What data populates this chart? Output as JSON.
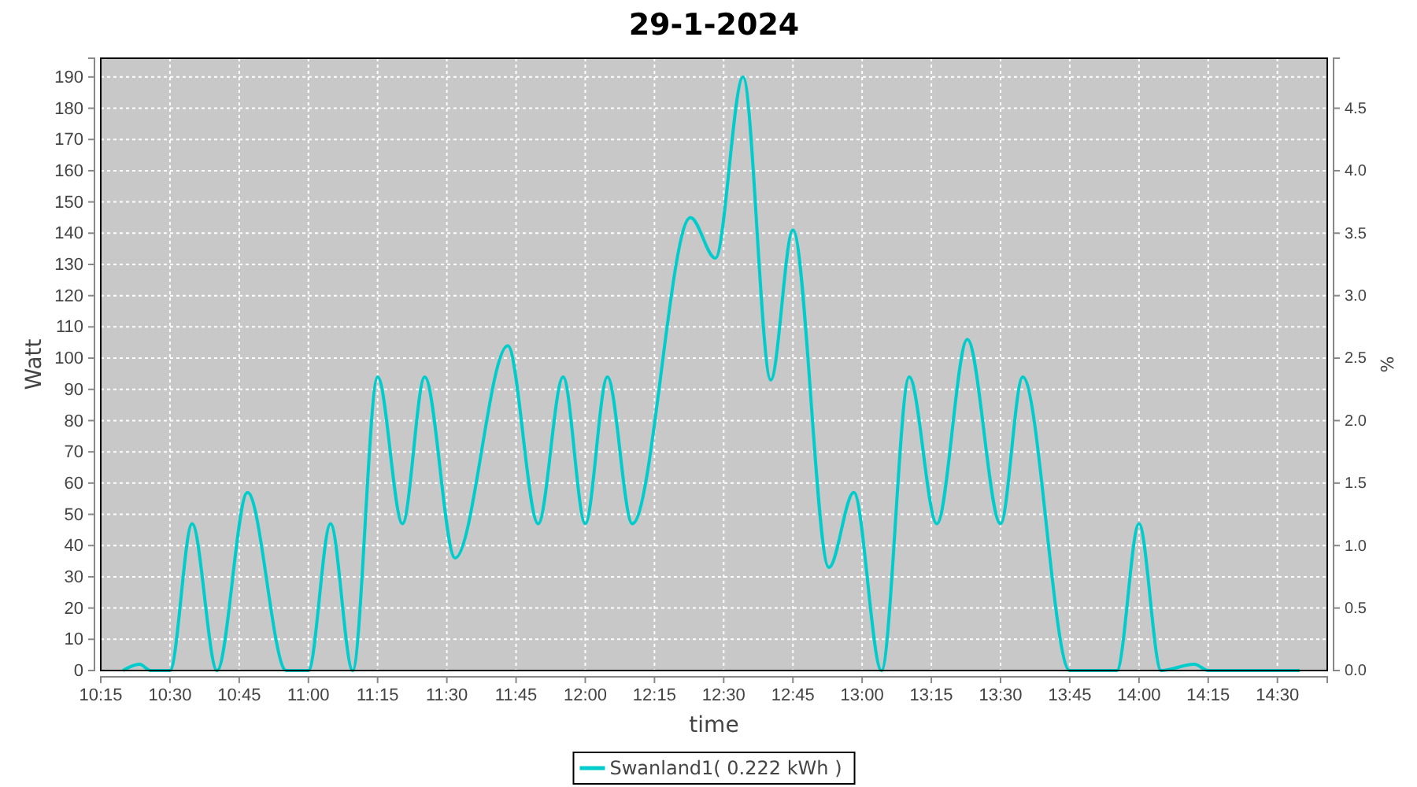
{
  "chart_data": {
    "type": "line",
    "title": "29-1-2024",
    "xlabel": "time",
    "ylabel": "Watt",
    "y2label": "%",
    "xlim": [
      10.25,
      14.68
    ],
    "xticks": [
      {
        "value": 10.25,
        "label": "10:15"
      },
      {
        "value": 10.5,
        "label": "10:30"
      },
      {
        "value": 10.75,
        "label": "10:45"
      },
      {
        "value": 11,
        "label": "11:00"
      },
      {
        "value": 11.25,
        "label": "11:15"
      },
      {
        "value": 11.5,
        "label": "11:30"
      },
      {
        "value": 11.75,
        "label": "11:45"
      },
      {
        "value": 12,
        "label": "12:00"
      },
      {
        "value": 12.25,
        "label": "12:15"
      },
      {
        "value": 12.5,
        "label": "12:30"
      },
      {
        "value": 12.75,
        "label": "12:45"
      },
      {
        "value": 13,
        "label": "13:00"
      },
      {
        "value": 13.25,
        "label": "13:15"
      },
      {
        "value": 13.5,
        "label": "13:30"
      },
      {
        "value": 13.75,
        "label": "13:45"
      },
      {
        "value": 14,
        "label": "14:00"
      },
      {
        "value": 14.25,
        "label": "14:15"
      },
      {
        "value": 14.5,
        "label": "14:30"
      }
    ],
    "ylim": [
      0,
      196
    ],
    "yticks": [
      0,
      10,
      20,
      30,
      40,
      50,
      60,
      70,
      80,
      90,
      100,
      110,
      120,
      130,
      140,
      150,
      160,
      170,
      180,
      190
    ],
    "y2lim": [
      0,
      4.9
    ],
    "y2ticks": [
      {
        "value": 0,
        "label": "0.0"
      },
      {
        "value": 0.5,
        "label": "0.5"
      },
      {
        "value": 1,
        "label": "1.0"
      },
      {
        "value": 1.5,
        "label": "1.5"
      },
      {
        "value": 2,
        "label": "2.0"
      },
      {
        "value": 2.5,
        "label": "2.5"
      },
      {
        "value": 3,
        "label": "3.0"
      },
      {
        "value": 3.5,
        "label": "3.5"
      },
      {
        "value": 4,
        "label": "4.0"
      },
      {
        "value": 4.5,
        "label": "4.5"
      }
    ],
    "grid": true,
    "legend": "bottom",
    "marker": "none",
    "line_style": "solid",
    "series": [
      {
        "name": "Swanland1( 0.222 kWh )",
        "color": "#00cccc",
        "x": [
          10.33,
          10.39,
          10.43,
          10.5,
          10.58,
          10.67,
          10.78,
          10.92,
          11,
          11.08,
          11.16,
          11.25,
          11.34,
          11.42,
          11.53,
          11.72,
          11.83,
          11.92,
          12,
          12.08,
          12.17,
          12.38,
          12.47,
          12.57,
          12.67,
          12.75,
          12.88,
          12.97,
          13.07,
          13.17,
          13.27,
          13.38,
          13.5,
          13.58,
          13.75,
          13.92,
          14,
          14.08,
          14.2,
          14.25,
          14.58
        ],
        "values": [
          0,
          2,
          0,
          0,
          47,
          0,
          57,
          0,
          0,
          47,
          0,
          94,
          47,
          94,
          36,
          104,
          47,
          94,
          47,
          94,
          47,
          145,
          132,
          190,
          93,
          141,
          33,
          57,
          0,
          94,
          47,
          106,
          47,
          94,
          0,
          0,
          47,
          0,
          2,
          0,
          0
        ]
      }
    ]
  }
}
